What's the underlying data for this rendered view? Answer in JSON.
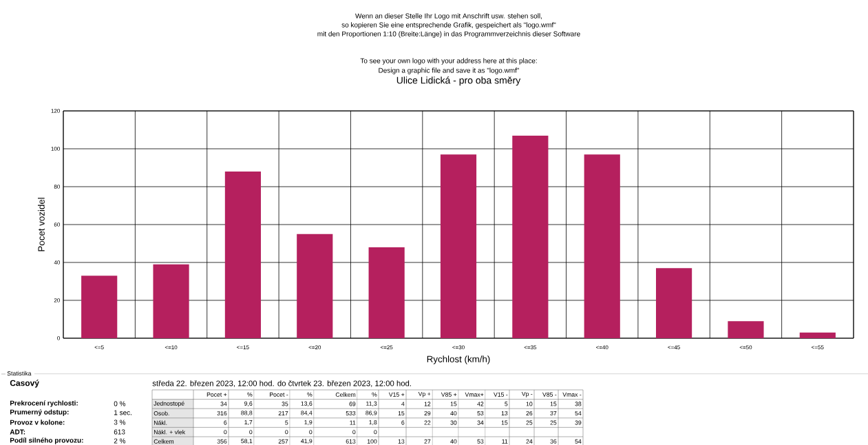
{
  "chart_data": {
    "type": "bar",
    "title": "Ulice Lidická - pro oba směry",
    "xlabel": "Rychlost (km/h)",
    "ylabel": "Pocet vozidel",
    "categories": [
      "<=5",
      "<=10",
      "<=15",
      "<=20",
      "<=25",
      "<=30",
      "<=35",
      "<=40",
      "<=45",
      "<=50",
      "<=55"
    ],
    "values": [
      33,
      39,
      88,
      55,
      48,
      97,
      107,
      97,
      37,
      9,
      3
    ],
    "color": "#b5205e",
    "ylim": [
      0,
      120
    ],
    "yticks": [
      0,
      20,
      40,
      60,
      80,
      100,
      120
    ],
    "grid": true,
    "annotations": [
      "Wenn an dieser Stelle Ihr Logo mit Anschrift usw. stehen soll,",
      "so kopieren Sie eine entsprechende Grafik, gespeichert als \"logo.wmf\"",
      "mit den Proportionen 1:10 (Breite:Länge) in das Programmverzeichnis dieser Software",
      "To see your own logo with your address here at this place:",
      "Design a graphic file and save it as \"logo.wmf\"",
      "Statistika",
      "Casový",
      "Prekrocení rychlosti:",
      "Prumerný odstup:",
      "Provoz v kolone:",
      "ADT:",
      "Podíl silného provozu:",
      "0 %",
      "1 sec.",
      "3 %",
      "613",
      "2 %",
      "středa 22. březen 2023, 12:00 hod. do čtvrtek 23. březen 2023, 12:00 hod.",
      "Pocet +",
      "%",
      "Pocet -",
      "%",
      "Celkem",
      "%",
      "V15 +",
      "Vp +",
      "V85 +",
      "Vmax+",
      "V15 -",
      "Vp -",
      "V85 -",
      "Vmax -",
      "Jednostopé",
      "34",
      "9,6",
      "35",
      "13,6",
      "69",
      "11,3",
      "4",
      "12",
      "15",
      "42",
      "5",
      "10",
      "15",
      "38",
      "Osob.",
      "316",
      "88,8",
      "217",
      "84,4",
      "533",
      "86,9",
      "15",
      "29",
      "40",
      "53",
      "13",
      "26",
      "37",
      "54",
      "Nákl.",
      "6",
      "1,7",
      "5",
      "1,9",
      "11",
      "1,8",
      "6",
      "22",
      "30",
      "34",
      "15",
      "25",
      "25",
      "39",
      "Nákl. + vlek",
      "0",
      "0",
      "0",
      "0",
      "0",
      "0",
      "Celkem",
      "356",
      "58,1",
      "257",
      "41,9",
      "613",
      "100",
      "13",
      "27",
      "40",
      "53",
      "11",
      "24",
      "36",
      "54"
    ]
  }
}
